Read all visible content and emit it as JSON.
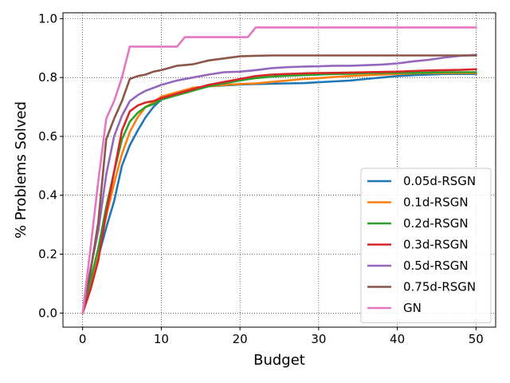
{
  "chart_data": {
    "type": "line",
    "xlabel": "Budget",
    "ylabel": "% Problems Solved",
    "xlim": [
      -2.5,
      52.5
    ],
    "ylim": [
      -0.048,
      1.02
    ],
    "xticks": [
      0,
      10,
      20,
      30,
      40,
      50
    ],
    "yticks": [
      0.0,
      0.2,
      0.4,
      0.6,
      0.8,
      1.0
    ],
    "xtick_labels": [
      "0",
      "10",
      "20",
      "30",
      "40",
      "50"
    ],
    "ytick_labels": [
      "0.0",
      "0.2",
      "0.4",
      "0.6",
      "0.8",
      "1.0"
    ],
    "grid": true,
    "grid_style": "dotted",
    "legend_position": "lower-right",
    "series": [
      {
        "name": "0.05d-RSGN",
        "color": "#1f77b4",
        "x": [
          0,
          1,
          2,
          3,
          4,
          5,
          6,
          7,
          8,
          9,
          10,
          12,
          14,
          16,
          18,
          20,
          22,
          24,
          26,
          28,
          30,
          32,
          34,
          36,
          38,
          40,
          42,
          44,
          46,
          48,
          50
        ],
        "y": [
          0,
          0.09,
          0.19,
          0.29,
          0.38,
          0.5,
          0.57,
          0.62,
          0.665,
          0.7,
          0.725,
          0.745,
          0.765,
          0.77,
          0.773,
          0.776,
          0.778,
          0.779,
          0.78,
          0.781,
          0.784,
          0.787,
          0.79,
          0.795,
          0.8,
          0.805,
          0.808,
          0.81,
          0.812,
          0.812,
          0.812
        ]
      },
      {
        "name": "0.1d-RSGN",
        "color": "#ff7f0e",
        "x": [
          0,
          1,
          2,
          3,
          4,
          5,
          6,
          7,
          8,
          9,
          10,
          12,
          14,
          16,
          18,
          20,
          22,
          24,
          26,
          28,
          30,
          32,
          34,
          36,
          38,
          40,
          42,
          44,
          46,
          48,
          50
        ],
        "y": [
          0,
          0.1,
          0.21,
          0.33,
          0.44,
          0.54,
          0.615,
          0.665,
          0.7,
          0.715,
          0.735,
          0.75,
          0.765,
          0.77,
          0.775,
          0.778,
          0.78,
          0.785,
          0.79,
          0.795,
          0.798,
          0.802,
          0.805,
          0.808,
          0.81,
          0.812,
          0.814,
          0.815,
          0.815,
          0.815,
          0.815
        ]
      },
      {
        "name": "0.2d-RSGN",
        "color": "#2ca02c",
        "x": [
          0,
          1,
          2,
          3,
          4,
          5,
          6,
          7,
          8,
          9,
          10,
          12,
          14,
          16,
          18,
          20,
          22,
          24,
          26,
          28,
          30,
          32,
          34,
          36,
          38,
          40,
          42,
          44,
          46,
          48,
          50
        ],
        "y": [
          0,
          0.11,
          0.22,
          0.36,
          0.48,
          0.59,
          0.65,
          0.68,
          0.7,
          0.71,
          0.725,
          0.74,
          0.755,
          0.77,
          0.78,
          0.79,
          0.798,
          0.803,
          0.806,
          0.808,
          0.81,
          0.812,
          0.813,
          0.815,
          0.816,
          0.816,
          0.816,
          0.817,
          0.818,
          0.818,
          0.818
        ]
      },
      {
        "name": "0.3d-RSGN",
        "color": "#d62728",
        "x": [
          0,
          1,
          2,
          3,
          4,
          5,
          6,
          7,
          8,
          9,
          10,
          12,
          14,
          16,
          18,
          20,
          22,
          24,
          26,
          28,
          30,
          32,
          34,
          36,
          38,
          40,
          42,
          44,
          46,
          48,
          50
        ],
        "y": [
          0,
          0.08,
          0.18,
          0.34,
          0.48,
          0.62,
          0.685,
          0.705,
          0.715,
          0.72,
          0.73,
          0.745,
          0.76,
          0.775,
          0.785,
          0.795,
          0.805,
          0.81,
          0.812,
          0.814,
          0.815,
          0.816,
          0.817,
          0.818,
          0.819,
          0.82,
          0.822,
          0.824,
          0.825,
          0.826,
          0.828
        ]
      },
      {
        "name": "0.5d-RSGN",
        "color": "#9467bd",
        "x": [
          0,
          1,
          2,
          3,
          4,
          5,
          6,
          7,
          8,
          9,
          10,
          12,
          14,
          16,
          18,
          20,
          22,
          24,
          26,
          28,
          30,
          32,
          34,
          36,
          38,
          40,
          42,
          44,
          46,
          48,
          50
        ],
        "y": [
          0,
          0.15,
          0.28,
          0.47,
          0.6,
          0.67,
          0.72,
          0.74,
          0.755,
          0.765,
          0.775,
          0.79,
          0.8,
          0.81,
          0.818,
          0.82,
          0.825,
          0.832,
          0.835,
          0.837,
          0.838,
          0.84,
          0.84,
          0.842,
          0.844,
          0.848,
          0.855,
          0.86,
          0.868,
          0.874,
          0.877
        ]
      },
      {
        "name": "0.75d-RSGN",
        "color": "#8c564b",
        "x": [
          0,
          1,
          2,
          3,
          4,
          5,
          6,
          7,
          8,
          9,
          10,
          12,
          14,
          16,
          18,
          20,
          22,
          24,
          26,
          28,
          30,
          32,
          34,
          36,
          38,
          40,
          42,
          44,
          46,
          48,
          50
        ],
        "y": [
          0,
          0.14,
          0.31,
          0.59,
          0.66,
          0.72,
          0.795,
          0.805,
          0.81,
          0.82,
          0.825,
          0.84,
          0.845,
          0.858,
          0.865,
          0.872,
          0.874,
          0.875,
          0.875,
          0.875,
          0.875,
          0.875,
          0.875,
          0.875,
          0.875,
          0.875,
          0.875,
          0.875,
          0.875,
          0.875,
          0.875
        ]
      },
      {
        "name": "GN",
        "color": "#e377c2",
        "x": [
          0,
          1,
          2,
          3,
          4,
          5,
          6,
          7,
          8,
          9,
          10,
          11,
          12,
          13,
          14,
          16,
          18,
          20,
          21,
          22,
          24,
          26,
          28,
          30,
          32,
          34,
          36,
          38,
          40,
          42,
          44,
          46,
          48,
          50
        ],
        "y": [
          0,
          0.22,
          0.45,
          0.66,
          0.72,
          0.8,
          0.905,
          0.905,
          0.905,
          0.905,
          0.905,
          0.905,
          0.905,
          0.937,
          0.937,
          0.937,
          0.937,
          0.937,
          0.937,
          0.97,
          0.97,
          0.97,
          0.97,
          0.97,
          0.97,
          0.97,
          0.97,
          0.97,
          0.97,
          0.97,
          0.97,
          0.97,
          0.97,
          0.97
        ]
      }
    ]
  }
}
